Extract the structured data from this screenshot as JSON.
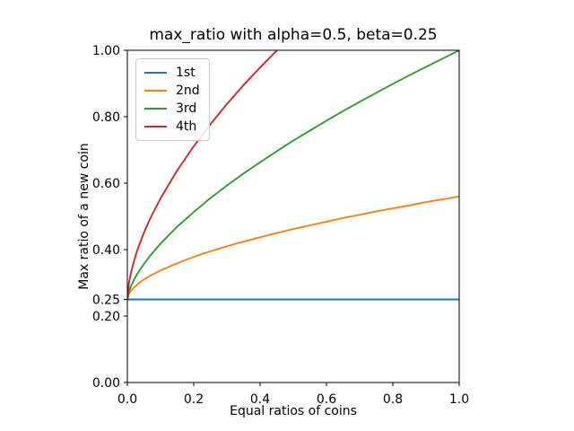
{
  "figure": {
    "background": "#ffffff",
    "spine_color": "#000000"
  },
  "chart_data": {
    "type": "line",
    "title": "max_ratio with alpha=0.5, beta=0.25",
    "xlabel": "Equal ratios of coins",
    "ylabel": "Max ratio of a new coin",
    "xlim": [
      0.0,
      1.0
    ],
    "ylim": [
      0.0,
      1.0
    ],
    "grid": false,
    "legend_position": "upper left",
    "x_ticks": [
      0.0,
      0.2,
      0.4,
      0.6,
      0.8,
      1.0
    ],
    "x_tick_labels": [
      "0.0",
      "0.2",
      "0.4",
      "0.6",
      "0.8",
      "1.0"
    ],
    "y_ticks": [
      0.0,
      0.2,
      0.25,
      0.4,
      0.6,
      0.8,
      1.0
    ],
    "y_tick_labels": [
      "0.00",
      "0.20",
      "0.25",
      "0.40",
      "0.60",
      "0.80",
      "1.00"
    ],
    "x": [
      0,
      0.005,
      0.01,
      0.02,
      0.03,
      0.05,
      0.07,
      0.1,
      0.15,
      0.2,
      0.25,
      0.3,
      0.35,
      0.4,
      0.45,
      0.452,
      0.5,
      0.55,
      0.6,
      0.65,
      0.7,
      0.75,
      0.8,
      0.85,
      0.9,
      0.95,
      1.0
    ],
    "series": [
      {
        "name": "1st",
        "color": "#1f77b4",
        "values": [
          0.25,
          0.25,
          0.25,
          0.25,
          0.25,
          0.25,
          0.25,
          0.25,
          0.25,
          0.25,
          0.25,
          0.25,
          0.25,
          0.25,
          0.25,
          0.25,
          0.25,
          0.25,
          0.25,
          0.25,
          0.25,
          0.25,
          0.25,
          0.25,
          0.25,
          0.25,
          0.25
        ]
      },
      {
        "name": "2nd",
        "color": "#ff7f0e",
        "values": [
          0.25,
          0.267,
          0.275,
          0.286,
          0.295,
          0.31,
          0.322,
          0.337,
          0.359,
          0.378,
          0.395,
          0.41,
          0.424,
          0.437,
          0.45,
          0.45,
          0.462,
          0.473,
          0.484,
          0.495,
          0.505,
          0.515,
          0.524,
          0.533,
          0.543,
          0.551,
          0.56
        ]
      },
      {
        "name": "3rd",
        "color": "#2ca02c",
        "values": [
          0.25,
          0.274,
          0.288,
          0.309,
          0.327,
          0.357,
          0.383,
          0.418,
          0.469,
          0.513,
          0.555,
          0.593,
          0.629,
          0.663,
          0.696,
          0.697,
          0.728,
          0.758,
          0.788,
          0.817,
          0.845,
          0.872,
          0.899,
          0.925,
          0.95,
          0.975,
          1.0
        ]
      },
      {
        "name": "4th",
        "color": "#d62728",
        "values": [
          0.25,
          0.3,
          0.326,
          0.366,
          0.398,
          0.451,
          0.496,
          0.554,
          0.638,
          0.711,
          0.777,
          0.838,
          0.895,
          0.948,
          0.999,
          1.0,
          null,
          null,
          null,
          null,
          null,
          null,
          null,
          null,
          null,
          null,
          null
        ]
      }
    ]
  }
}
